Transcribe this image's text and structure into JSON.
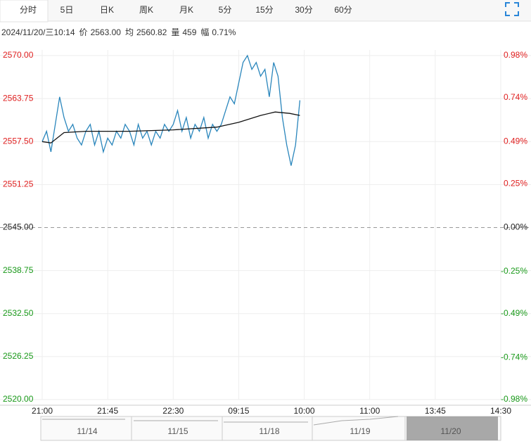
{
  "tabs": [
    "分时",
    "5日",
    "日K",
    "周K",
    "月K",
    "5分",
    "15分",
    "30分",
    "60分"
  ],
  "info": {
    "time": "2024/11/20/三10:14",
    "items": [
      {
        "label": "价",
        "value": "2563.00"
      },
      {
        "label": "均",
        "value": "2560.82"
      },
      {
        "label": "量",
        "value": "459"
      },
      {
        "label": "幅",
        "value": "0.71%"
      }
    ]
  },
  "chart_data": {
    "type": "line",
    "xlim": [
      0,
      315
    ],
    "xticks": [
      {
        "value": 0,
        "label": "21:00"
      },
      {
        "value": 45,
        "label": "21:45"
      },
      {
        "value": 90,
        "label": "22:30"
      },
      {
        "value": 135,
        "label": "09:15"
      },
      {
        "value": 180,
        "label": "10:00"
      },
      {
        "value": 225,
        "label": "11:00"
      },
      {
        "value": 270,
        "label": "13:45"
      },
      {
        "value": 315,
        "label": "14:30"
      }
    ],
    "ylim": [
      2520,
      2570
    ],
    "yticks": [
      {
        "value": 2570,
        "label": "2570.00"
      },
      {
        "value": 2563.75,
        "label": "2563.75"
      },
      {
        "value": 2557.5,
        "label": "2557.50"
      },
      {
        "value": 2551.25,
        "label": "2551.25"
      },
      {
        "value": 2545,
        "label": "2545.00"
      },
      {
        "value": 2538.75,
        "label": "2538.75"
      },
      {
        "value": 2532.5,
        "label": "2532.50"
      },
      {
        "value": 2526.25,
        "label": "2526.25"
      },
      {
        "value": 2520,
        "label": "2520.00"
      }
    ],
    "y2lim": [
      -0.98,
      0.98
    ],
    "y2ticks": [
      {
        "value": 0.98,
        "label": "0.98%"
      },
      {
        "value": 0.74,
        "label": "0.74%"
      },
      {
        "value": 0.49,
        "label": "0.49%"
      },
      {
        "value": 0.25,
        "label": "0.25%"
      },
      {
        "value": 0,
        "label": "0.00%"
      },
      {
        "value": -0.25,
        "label": "-0.25%"
      },
      {
        "value": -0.49,
        "label": "-0.49%"
      },
      {
        "value": -0.74,
        "label": "-0.74%"
      },
      {
        "value": -0.98,
        "label": "-0.98%"
      }
    ],
    "up_color": "#e02020",
    "down_color": "#1a9a1a",
    "grid": true,
    "series": [
      {
        "color": "#2a86bc",
        "x": [
          0,
          3,
          6,
          9,
          12,
          15,
          18,
          21,
          24,
          27,
          30,
          33,
          36,
          39,
          42,
          45,
          48,
          51,
          54,
          57,
          60,
          63,
          66,
          69,
          72,
          75,
          78,
          81,
          84,
          87,
          90,
          93,
          96,
          99,
          102,
          105,
          108,
          111,
          114,
          117,
          120,
          123,
          126,
          129,
          132,
          135,
          138,
          141,
          144,
          147,
          150,
          153,
          156,
          159,
          162,
          165,
          168,
          171,
          174,
          177
        ],
        "values": [
          2557.5,
          2559,
          2556,
          2560,
          2564,
          2561,
          2559,
          2560,
          2558,
          2557,
          2559,
          2560,
          2557,
          2559,
          2556,
          2558,
          2557,
          2559,
          2558,
          2560,
          2559,
          2557,
          2560,
          2558,
          2559,
          2557,
          2559,
          2558,
          2560,
          2559,
          2560,
          2562,
          2559,
          2561,
          2558,
          2560,
          2559,
          2561,
          2558,
          2560,
          2559,
          2560,
          2562,
          2564,
          2563,
          2566,
          2569,
          2570,
          2568,
          2569,
          2567,
          2568,
          2564,
          2569,
          2567,
          2561,
          2557,
          2554,
          2557,
          2563.5
        ]
      },
      {
        "color": "#111111",
        "x": [
          0,
          6,
          15,
          30,
          60,
          90,
          120,
          135,
          150,
          160,
          170,
          177
        ],
        "values": [
          2557.5,
          2557.3,
          2558.8,
          2559,
          2559,
          2559.2,
          2559.6,
          2560.3,
          2561.3,
          2561.8,
          2561.6,
          2561.3
        ]
      }
    ]
  },
  "navigator": {
    "dates": [
      "11/14",
      "11/15",
      "11/18",
      "11/19",
      "11/20"
    ]
  }
}
